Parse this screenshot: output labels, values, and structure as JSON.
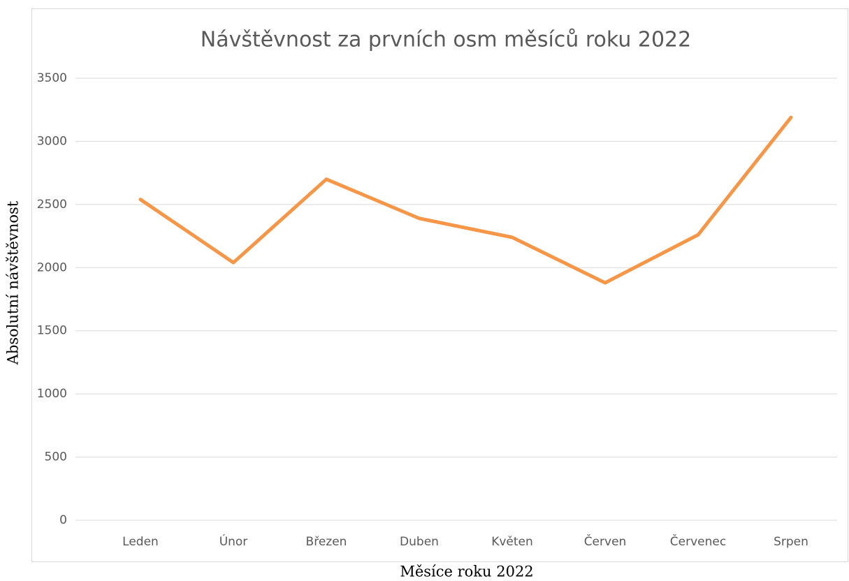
{
  "chart_data": {
    "type": "line",
    "title": "Návštěvnost za prvních osm měsíců roku 2022",
    "x_label": "Měsíce roku 2022",
    "y_label": "Absolutní návštěvnost",
    "categories": [
      "Leden",
      "Únor",
      "Březen",
      "Duben",
      "Květen",
      "Červen",
      "Červenec",
      "Srpen"
    ],
    "series": [
      {
        "name": "Návštěvnost",
        "color": "#f79646",
        "values": [
          2540,
          2040,
          2700,
          2390,
          2240,
          1880,
          2260,
          3190
        ]
      }
    ],
    "ylim": [
      0,
      3500
    ],
    "yticks": [
      0,
      500,
      1000,
      1500,
      2000,
      2500,
      3000,
      3500
    ],
    "grid": true
  }
}
